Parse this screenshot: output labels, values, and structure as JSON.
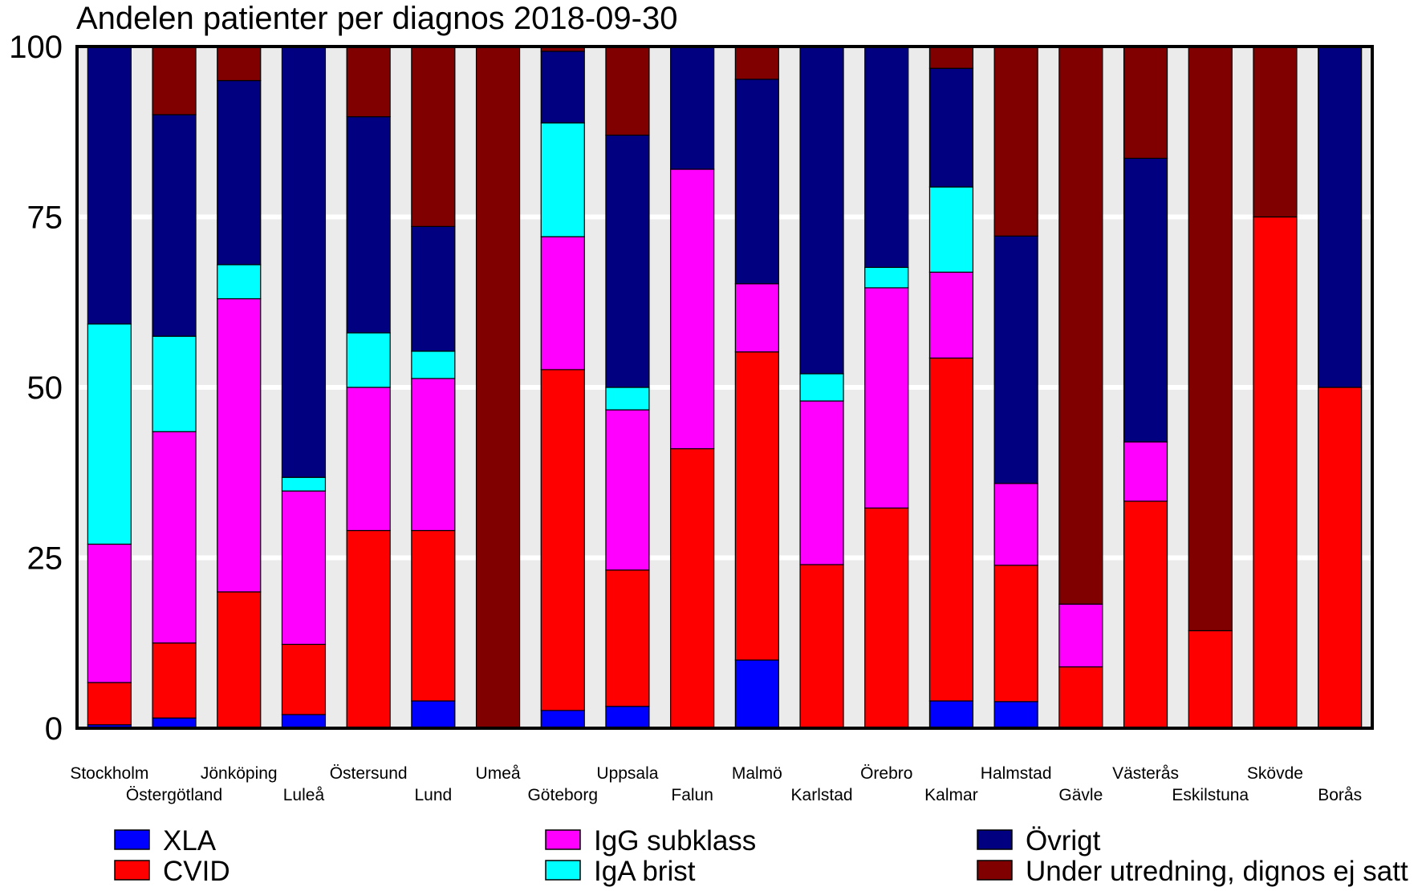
{
  "chart_data": {
    "type": "bar",
    "stacked": true,
    "title": "Andelen patienter per diagnos 2018-09-30",
    "xlabel": "",
    "ylabel": "",
    "ylim": [
      0,
      100
    ],
    "yticks": [
      0,
      25,
      50,
      75,
      100
    ],
    "grid": true,
    "legend_position": "bottom",
    "categories": [
      "Stockholm",
      "Östergötland",
      "Jönköping",
      "Luleå",
      "Östersund",
      "Lund",
      "Umeå",
      "Göteborg",
      "Uppsala",
      "Falun",
      "Malmö",
      "Karlstad",
      "Örebro",
      "Kalmar",
      "Halmstad",
      "Gävle",
      "Västerås",
      "Eskilstuna",
      "Skövde",
      "Borås"
    ],
    "series": [
      {
        "name": "XLA",
        "color": "#0000ff",
        "values": [
          0.5,
          1.5,
          0,
          2,
          0,
          4,
          0,
          2.6,
          3.2,
          0,
          10,
          0,
          0,
          4,
          3.9,
          0,
          0,
          0,
          0,
          0
        ]
      },
      {
        "name": "CVID",
        "color": "#ff0000",
        "values": [
          6.2,
          11,
          20,
          10.3,
          29,
          25,
          0,
          50,
          20,
          41,
          45.2,
          24,
          32.3,
          50.3,
          20,
          9,
          33.3,
          14.3,
          75,
          50
        ]
      },
      {
        "name": "IgG subklass",
        "color": "#ff00ff",
        "values": [
          20.3,
          31,
          43,
          22.5,
          21,
          22.3,
          0,
          19.5,
          23.5,
          41,
          10,
          24,
          32.3,
          12.6,
          12,
          9.2,
          8.7,
          0,
          0,
          0
        ]
      },
      {
        "name": "IgA brist",
        "color": "#00ffff",
        "values": [
          32.3,
          14,
          5,
          2,
          8,
          4,
          0,
          16.7,
          3.3,
          0,
          0,
          4,
          3,
          12.5,
          0,
          0,
          0,
          0,
          0,
          0
        ]
      },
      {
        "name": "Övrigt",
        "color": "#000080",
        "values": [
          40.7,
          32.5,
          27,
          63.2,
          31.7,
          18.3,
          0,
          10.5,
          37,
          18,
          30,
          48,
          32.4,
          17.4,
          36.3,
          0,
          41.6,
          0,
          0,
          50
        ]
      },
      {
        "name": "Under utredning, dignos ej satt",
        "color": "#800000",
        "values": [
          0,
          10,
          5,
          0,
          10.3,
          26.4,
          100,
          0.7,
          13,
          0,
          4.8,
          0,
          0,
          3.2,
          27.8,
          81.8,
          16.4,
          85.7,
          25,
          0
        ]
      }
    ]
  }
}
